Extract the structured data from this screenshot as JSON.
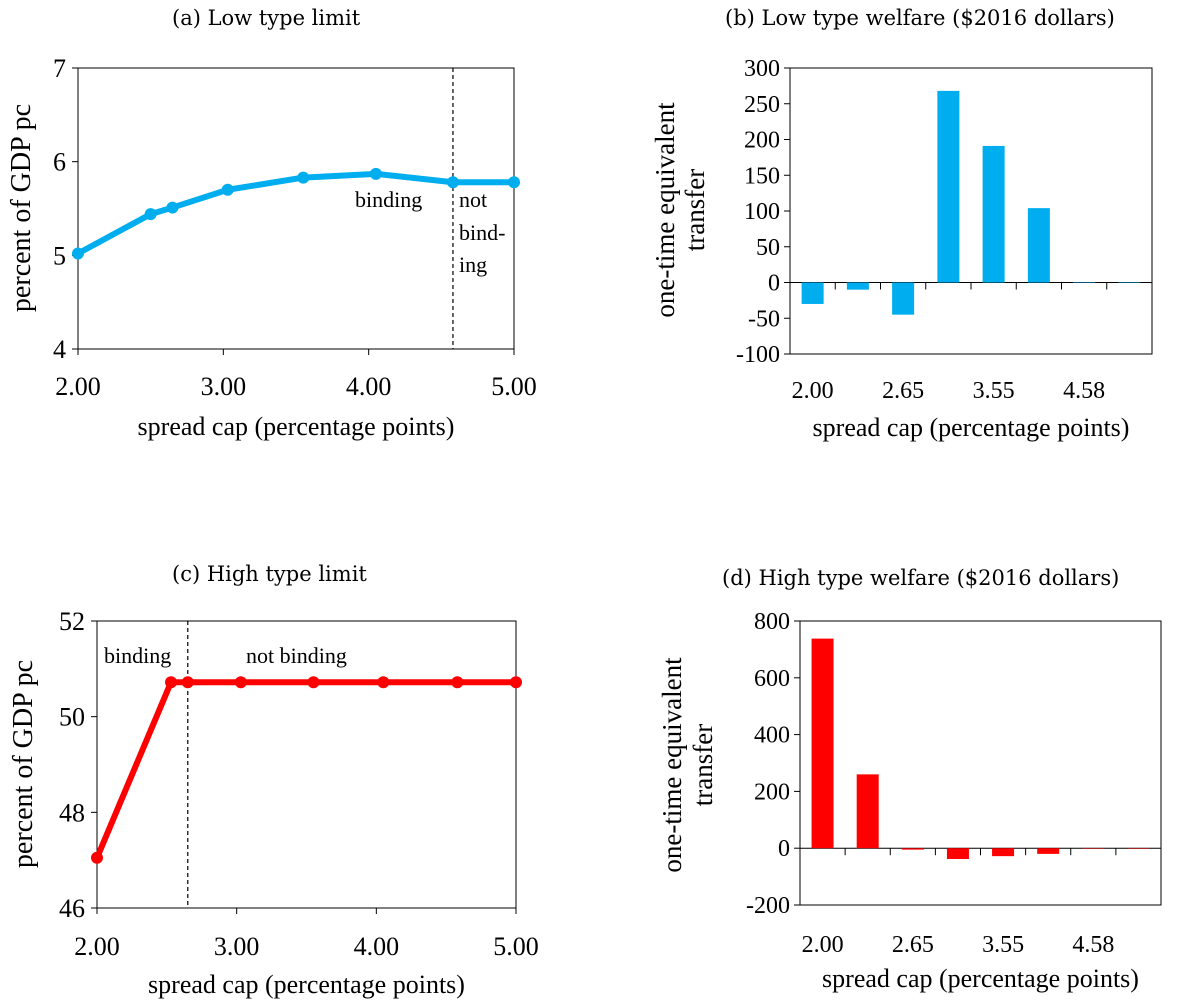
{
  "titles": {
    "a": "(a) Low type limit",
    "b": "(b) Low type welfare ($2016 dollars)",
    "c": "(c) High type limit",
    "d": "(d) High type welfare ($2016 dollars)"
  },
  "colors": {
    "low": "#00AEEF",
    "high": "#FF0000"
  },
  "chart_data": [
    {
      "id": "a",
      "type": "line",
      "title": "(a) Low type limit",
      "xlabel": "spread cap (percentage points)",
      "ylabel": "percent of GDP pc",
      "xlim": [
        2,
        5
      ],
      "ylim": [
        4,
        7
      ],
      "xticks": [
        2,
        3,
        4,
        5
      ],
      "xtick_labels": [
        "2.00",
        "3.00",
        "4.00",
        "5.00"
      ],
      "yticks": [
        4,
        5,
        6,
        7
      ],
      "ytick_labels": [
        "4",
        "5",
        "6",
        "7"
      ],
      "x": [
        2.0,
        2.5,
        2.65,
        3.03,
        3.55,
        4.05,
        4.58,
        5.0
      ],
      "y": [
        5.02,
        5.44,
        5.51,
        5.7,
        5.83,
        5.87,
        5.78,
        5.78
      ],
      "vline": 4.58,
      "annotations": [
        "binding",
        "not",
        "bind-",
        "ing"
      ]
    },
    {
      "id": "b",
      "type": "bar",
      "title": "(b) Low type welfare ($2016 dollars)",
      "xlabel": "spread cap (percentage points)",
      "ylabel": [
        "one-time equivalent",
        "transfer"
      ],
      "ylim": [
        -100,
        300
      ],
      "yticks": [
        -100,
        -50,
        0,
        50,
        100,
        150,
        200,
        250,
        300
      ],
      "ytick_labels": [
        "-100",
        "-50",
        "0",
        "50",
        "100",
        "150",
        "200",
        "250",
        "300"
      ],
      "xtick_labels": [
        "2.00",
        "2.65",
        "3.55",
        "4.58"
      ],
      "values": [
        -30,
        -10,
        -45,
        268,
        191,
        104,
        0,
        0
      ]
    },
    {
      "id": "c",
      "type": "line",
      "title": "(c) High type limit",
      "xlabel": "spread cap (percentage points)",
      "ylabel": "percent of GDP pc",
      "xlim": [
        2,
        5
      ],
      "ylim": [
        46,
        52
      ],
      "xticks": [
        2,
        3,
        4,
        5
      ],
      "xtick_labels": [
        "2.00",
        "3.00",
        "4.00",
        "5.00"
      ],
      "yticks": [
        46,
        48,
        50,
        52
      ],
      "ytick_labels": [
        "46",
        "48",
        "50",
        "52"
      ],
      "x": [
        2.0,
        2.53,
        2.65,
        3.03,
        3.55,
        4.05,
        4.58,
        5.0
      ],
      "y": [
        47.05,
        50.72,
        50.72,
        50.72,
        50.72,
        50.72,
        50.72,
        50.72
      ],
      "vline": 2.65,
      "annotations": [
        "binding",
        "not binding"
      ]
    },
    {
      "id": "d",
      "type": "bar",
      "title": "(d) High type welfare ($2016 dollars)",
      "xlabel": "spread cap (percentage points)",
      "ylabel": [
        "one-time equivalent",
        "transfer"
      ],
      "ylim": [
        -200,
        800
      ],
      "yticks": [
        -200,
        0,
        200,
        400,
        600,
        800
      ],
      "ytick_labels": [
        "-200",
        "0",
        "200",
        "400",
        "600",
        "800"
      ],
      "xtick_labels": [
        "2.00",
        "2.65",
        "3.55",
        "4.58"
      ],
      "values": [
        738,
        260,
        -5,
        -38,
        -28,
        -20,
        0,
        0
      ]
    }
  ]
}
